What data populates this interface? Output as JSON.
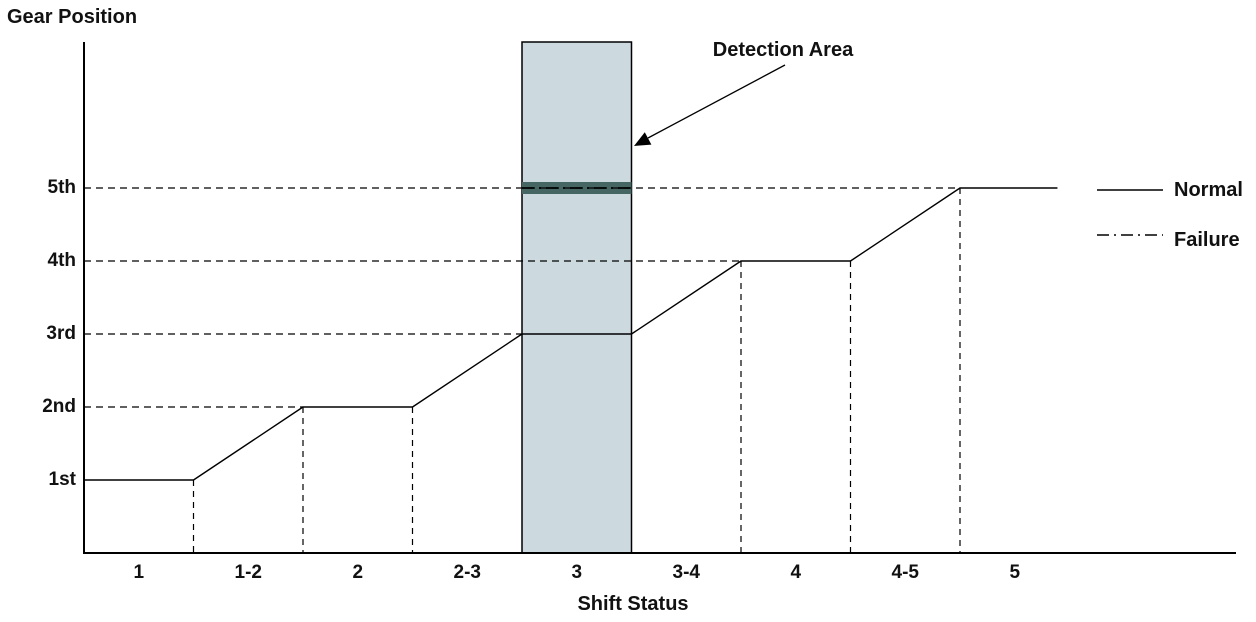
{
  "chart_data": {
    "type": "line",
    "title": "Gear Position",
    "xlabel": "Shift Status",
    "ylabel": "Gear Position",
    "categories": [
      "1",
      "1-2",
      "2",
      "2-3",
      "3",
      "3-4",
      "4",
      "4-5",
      "5"
    ],
    "y_tick_labels": [
      "1st",
      "2nd",
      "3rd",
      "4th",
      "5th"
    ],
    "axes": {
      "x_range": [
        0,
        9
      ],
      "y_levels": [
        1,
        2,
        3,
        4,
        5
      ],
      "grid": "dashed horizontal at each gear level, dashed vertical drop lines at step corners"
    },
    "series": [
      {
        "name": "Normal",
        "style": "solid",
        "points": [
          [
            0,
            1
          ],
          [
            1,
            1
          ],
          [
            2,
            2
          ],
          [
            3,
            2
          ],
          [
            4,
            3
          ],
          [
            5,
            3
          ],
          [
            6,
            4
          ],
          [
            7,
            4
          ],
          [
            8,
            5
          ],
          [
            8.89,
            5
          ]
        ]
      },
      {
        "name": "Failure",
        "style": "dash-dot",
        "points": [
          [
            4,
            5
          ],
          [
            5,
            5
          ]
        ]
      }
    ],
    "h_gridlines": [
      {
        "gear": 2,
        "to_x": 2
      },
      {
        "gear": 3,
        "to_x": 4
      },
      {
        "gear": 4,
        "to_x": 6
      },
      {
        "gear": 5,
        "to_x": 8
      }
    ],
    "v_droplines": [
      {
        "x": 1,
        "gear": 1
      },
      {
        "x": 2,
        "gear": 2
      },
      {
        "x": 3,
        "gear": 2
      },
      {
        "x": 6,
        "gear": 4
      },
      {
        "x": 7,
        "gear": 4
      },
      {
        "x": 8,
        "gear": 5
      }
    ],
    "detection_area": {
      "label": "Detection Area",
      "x_from": 4,
      "x_to": 5,
      "category": "3",
      "fill": "#ccd9df",
      "border_color": "#000000",
      "band_gear": 5,
      "band_color": "#466664"
    },
    "legend": {
      "position": "right",
      "entries": [
        {
          "label": "Normal",
          "style": "solid"
        },
        {
          "label": "Failure",
          "style": "dash-dot"
        }
      ]
    },
    "colors": {
      "line": "#000000",
      "background": "#ffffff",
      "text": "#111111"
    }
  }
}
